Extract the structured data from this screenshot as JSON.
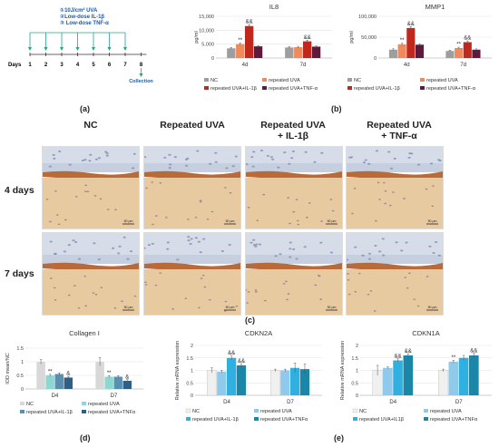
{
  "panel_a": {
    "letter": "(a)",
    "treatments": [
      "①10J/cm² UVA",
      "②Low-dose IL-1β",
      "③ Low-dose TNF-α"
    ],
    "days_label": "Days",
    "days": [
      "1",
      "2",
      "3",
      "4",
      "5",
      "6",
      "7",
      "8"
    ],
    "collection_label": "Collection",
    "colors": {
      "arrow": "#2aa08a",
      "timeline": "#333",
      "text": "#1e5aa8"
    }
  },
  "panel_b": {
    "letter": "(b)",
    "legend": [
      "NC",
      "repeated UVA",
      "repeated UVA+IL-1β",
      "repeated UVA+TNF-α"
    ],
    "colors": [
      "#9e9e9e",
      "#f08a5d",
      "#c0281e",
      "#5e1a3c"
    ]
  },
  "panel_c": {
    "letter": "(c)",
    "columns": [
      "NC",
      "Repeated UVA",
      "Repeated UVA\n+ IL-1β",
      "Repeated UVA\n+ TNF-α"
    ],
    "rows": [
      "4 days",
      "7 days"
    ],
    "scalebar": "50 µm"
  },
  "panel_d": {
    "letter": "(d)"
  },
  "panel_e": {
    "letter": "(e)"
  },
  "chart_data": [
    {
      "type": "bar",
      "title": "IL8",
      "ylabel": "pg/ml",
      "categories": [
        "4d",
        "7d"
      ],
      "ylim": [
        0,
        15000
      ],
      "yticks": [
        "0",
        "5,000",
        "10,000",
        "15,000"
      ],
      "series": [
        {
          "name": "NC",
          "values": [
            3500,
            3800
          ],
          "errors": [
            300,
            300
          ]
        },
        {
          "name": "repeated UVA",
          "values": [
            5000,
            3900
          ],
          "errors": [
            400,
            300
          ]
        },
        {
          "name": "repeated UVA+IL-1β",
          "values": [
            11500,
            6000
          ],
          "errors": [
            500,
            400
          ]
        },
        {
          "name": "repeated UVA+TNF-α",
          "values": [
            4200,
            4100
          ],
          "errors": [
            300,
            300
          ]
        }
      ],
      "annotations": [
        {
          "category": "4d",
          "series": "repeated UVA",
          "text": "**"
        },
        {
          "category": "4d",
          "series": "repeated UVA+IL-1β",
          "text": "&&"
        },
        {
          "category": "7d",
          "series": "repeated UVA+IL-1β",
          "text": "&&"
        }
      ]
    },
    {
      "type": "bar",
      "title": "MMP1",
      "ylabel": "pg/ml",
      "categories": [
        "4d",
        "7d"
      ],
      "ylim": [
        0,
        100000
      ],
      "yticks": [
        "0",
        "50,000",
        "100,000"
      ],
      "series": [
        {
          "name": "NC",
          "values": [
            20000,
            17000
          ],
          "errors": [
            2000,
            2000
          ]
        },
        {
          "name": "repeated UVA",
          "values": [
            33000,
            24000
          ],
          "errors": [
            2500,
            2000
          ]
        },
        {
          "name": "repeated UVA+IL-1β",
          "values": [
            72000,
            38000
          ],
          "errors": [
            3000,
            3000
          ]
        },
        {
          "name": "repeated UVA+TNF-α",
          "values": [
            32000,
            20000
          ],
          "errors": [
            2500,
            2000
          ]
        }
      ],
      "annotations": [
        {
          "category": "4d",
          "series": "repeated UVA",
          "text": "**"
        },
        {
          "category": "4d",
          "series": "repeated UVA+IL-1β",
          "text": "&&"
        },
        {
          "category": "7d",
          "series": "repeated UVA",
          "text": "**"
        },
        {
          "category": "7d",
          "series": "repeated UVA+IL-1β",
          "text": "&&"
        }
      ]
    },
    {
      "type": "bar",
      "title": "Collagen I",
      "ylabel": "IOD mean/NC",
      "categories": [
        "D4",
        "D7"
      ],
      "ylim": [
        0,
        1.5
      ],
      "yticks": [
        "0",
        "0.5",
        "1",
        "1.5"
      ],
      "series": [
        {
          "name": "NC",
          "values": [
            1.0,
            1.0
          ],
          "errors": [
            0.08,
            0.15
          ]
        },
        {
          "name": "repeated UVA",
          "values": [
            0.5,
            0.45
          ],
          "errors": [
            0.04,
            0.04
          ]
        },
        {
          "name": "repeated UVA+IL-1β",
          "values": [
            0.55,
            0.45
          ],
          "errors": [
            0.04,
            0.04
          ]
        },
        {
          "name": "repeated UVA+TNFα",
          "values": [
            0.42,
            0.3
          ],
          "errors": [
            0.04,
            0.04
          ]
        }
      ],
      "colors": [
        "#d8d8d8",
        "#8ed6d0",
        "#5a8fb0",
        "#2e5f86"
      ],
      "annotations": [
        {
          "category": "D4",
          "series": "repeated UVA",
          "text": "**"
        },
        {
          "category": "D4",
          "series": "repeated UVA+TNFα",
          "text": "&"
        },
        {
          "category": "D7",
          "series": "repeated UVA",
          "text": "**"
        },
        {
          "category": "D7",
          "series": "repeated UVA+TNFα",
          "text": "&"
        }
      ]
    },
    {
      "type": "bar",
      "title": "CDKN2A",
      "ylabel": "Relative mRNA expression",
      "categories": [
        "D4",
        "D7"
      ],
      "ylim": [
        0,
        2
      ],
      "yticks": [
        "0",
        "0.5",
        "1",
        "1.5",
        "2"
      ],
      "series": [
        {
          "name": "NC",
          "values": [
            1.0,
            1.0
          ],
          "errors": [
            0.1,
            0.05
          ]
        },
        {
          "name": "repeated UVA",
          "values": [
            0.95,
            1.0
          ],
          "errors": [
            0.05,
            0.05
          ]
        },
        {
          "name": "repeated UVA+IL-1β",
          "values": [
            1.5,
            1.1
          ],
          "errors": [
            0.08,
            0.2
          ]
        },
        {
          "name": "repeated UVA+TNFα",
          "values": [
            1.2,
            1.05
          ],
          "errors": [
            0.06,
            0.2
          ]
        }
      ],
      "colors": [
        "#f0f0f0",
        "#8fc9ec",
        "#2fb0e0",
        "#1a86a8"
      ],
      "annotations": [
        {
          "category": "D4",
          "series": "repeated UVA+IL-1β",
          "text": "&&"
        },
        {
          "category": "D4",
          "series": "repeated UVA+TNFα",
          "text": "&&"
        }
      ]
    },
    {
      "type": "bar",
      "title": "CDKN1A",
      "ylabel": "Relative mRNA expression",
      "categories": [
        "D4",
        "D7"
      ],
      "ylim": [
        0,
        2
      ],
      "yticks": [
        "0",
        "0.5",
        "1",
        "1.5",
        "2"
      ],
      "series": [
        {
          "name": "NC",
          "values": [
            1.0,
            1.0
          ],
          "errors": [
            0.2,
            0.05
          ]
        },
        {
          "name": "repeated UVA",
          "values": [
            1.1,
            1.35
          ],
          "errors": [
            0.04,
            0.05
          ]
        },
        {
          "name": "repeated UVA+IL1β",
          "values": [
            1.4,
            1.5
          ],
          "errors": [
            0.06,
            0.1
          ]
        },
        {
          "name": "repeated UVA+TNFα",
          "values": [
            1.6,
            1.6
          ],
          "errors": [
            0.06,
            0.08
          ]
        }
      ],
      "colors": [
        "#f0f0f0",
        "#8fc9ec",
        "#2fb0e0",
        "#1a86a8"
      ],
      "annotations": [
        {
          "category": "D4",
          "series": "repeated UVA+IL1β",
          "text": "&&"
        },
        {
          "category": "D4",
          "series": "repeated UVA+TNFα",
          "text": "&&"
        },
        {
          "category": "D7",
          "series": "repeated UVA",
          "text": "**"
        },
        {
          "category": "D7",
          "series": "repeated UVA+TNFα",
          "text": "&&"
        }
      ]
    }
  ]
}
